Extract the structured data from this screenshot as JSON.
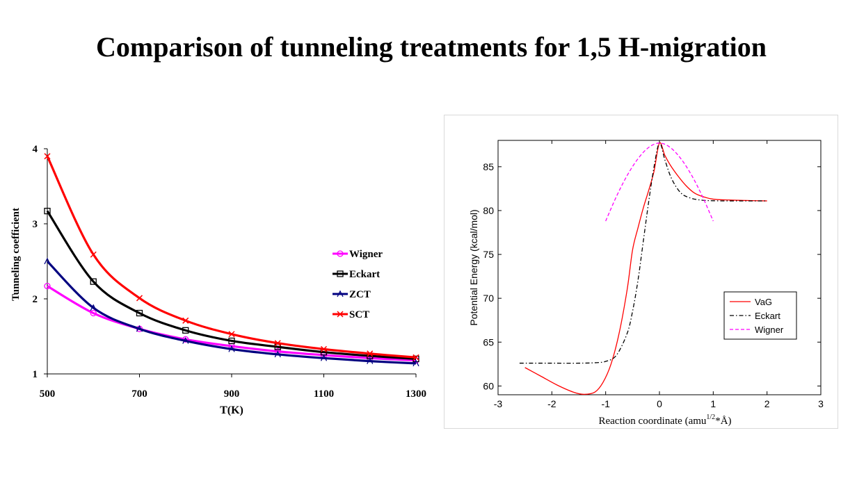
{
  "page": {
    "title": "Comparison of tunneling treatments for 1,5 H-migration"
  },
  "chart_data": [
    {
      "type": "line",
      "xlabel": "T(K)",
      "ylabel": "Tunneling coefficient",
      "xlim": [
        500,
        1300
      ],
      "ylim": [
        1,
        4
      ],
      "xticks": [
        500,
        700,
        900,
        1100,
        1300
      ],
      "yticks": [
        1,
        2,
        3,
        4
      ],
      "legend_position": "right",
      "grid": false,
      "x": [
        500,
        600,
        700,
        800,
        900,
        1000,
        1100,
        1200,
        1300
      ],
      "series": [
        {
          "name": "Wigner",
          "color": "#ff00ff",
          "marker": "circle",
          "values": [
            2.17,
            1.81,
            1.6,
            1.46,
            1.37,
            1.3,
            1.25,
            1.21,
            1.18
          ]
        },
        {
          "name": "Eckart",
          "color": "#000000",
          "marker": "square",
          "values": [
            3.17,
            2.23,
            1.81,
            1.58,
            1.44,
            1.36,
            1.29,
            1.24,
            1.2
          ]
        },
        {
          "name": "ZCT",
          "color": "#000080",
          "marker": "triangle",
          "values": [
            2.5,
            1.88,
            1.6,
            1.44,
            1.33,
            1.26,
            1.21,
            1.17,
            1.14
          ]
        },
        {
          "name": "SCT",
          "color": "#ff0000",
          "marker": "x",
          "values": [
            3.9,
            2.59,
            2.01,
            1.71,
            1.53,
            1.41,
            1.33,
            1.27,
            1.22
          ]
        }
      ]
    },
    {
      "type": "line",
      "xlabel_main": "Reaction coordinate (amu",
      "xlabel_sup": "1/2",
      "xlabel_tail": "*Å)",
      "ylabel": "Potential Energy (kcal/mol)",
      "xlim": [
        -3,
        3
      ],
      "ylim": [
        59,
        88
      ],
      "xticks": [
        -3,
        -2,
        -1,
        0,
        1,
        2,
        3
      ],
      "yticks": [
        60,
        65,
        70,
        75,
        80,
        85
      ],
      "legend_position": "lower-right",
      "grid": false,
      "series": [
        {
          "name": "VaG",
          "color": "#ff0000",
          "dash": "solid",
          "x": [
            -2.5,
            -2.2,
            -1.9,
            -1.6,
            -1.4,
            -1.2,
            -1.05,
            -0.9,
            -0.75,
            -0.6,
            -0.5,
            -0.4,
            -0.3,
            -0.2,
            -0.1,
            0,
            0.1,
            0.2,
            0.35,
            0.5,
            0.65,
            0.8,
            1.0,
            1.3,
            1.6,
            2.0
          ],
          "y": [
            62.1,
            61.1,
            60.1,
            59.3,
            59.05,
            59.3,
            60.4,
            62.5,
            66.0,
            71.0,
            75.5,
            78.0,
            80.3,
            82.3,
            84.5,
            87.7,
            86.3,
            85.2,
            83.9,
            82.8,
            82.0,
            81.6,
            81.3,
            81.2,
            81.15,
            81.1
          ]
        },
        {
          "name": "Eckart",
          "color": "#000000",
          "dash": "dashdot",
          "x": [
            -2.6,
            -2.0,
            -1.5,
            -1.2,
            -1.0,
            -0.8,
            -0.6,
            -0.5,
            -0.4,
            -0.3,
            -0.2,
            -0.1,
            0,
            0.1,
            0.2,
            0.3,
            0.4,
            0.5,
            0.7,
            1.0,
            1.5,
            2.0
          ],
          "y": [
            62.6,
            62.6,
            62.6,
            62.65,
            62.8,
            63.5,
            66.0,
            68.5,
            72.0,
            76.5,
            81.0,
            85.0,
            87.7,
            85.8,
            84.0,
            82.8,
            82.0,
            81.6,
            81.25,
            81.12,
            81.1,
            81.1
          ]
        },
        {
          "name": "Wigner",
          "color": "#ff00ff",
          "dash": "dashed",
          "x": [
            -1.0,
            -0.8,
            -0.6,
            -0.4,
            -0.2,
            0,
            0.2,
            0.4,
            0.6,
            0.8,
            1.0
          ],
          "y": [
            78.8,
            81.6,
            84.0,
            85.9,
            87.2,
            87.7,
            87.2,
            85.9,
            84.0,
            81.6,
            78.8
          ]
        }
      ]
    }
  ]
}
